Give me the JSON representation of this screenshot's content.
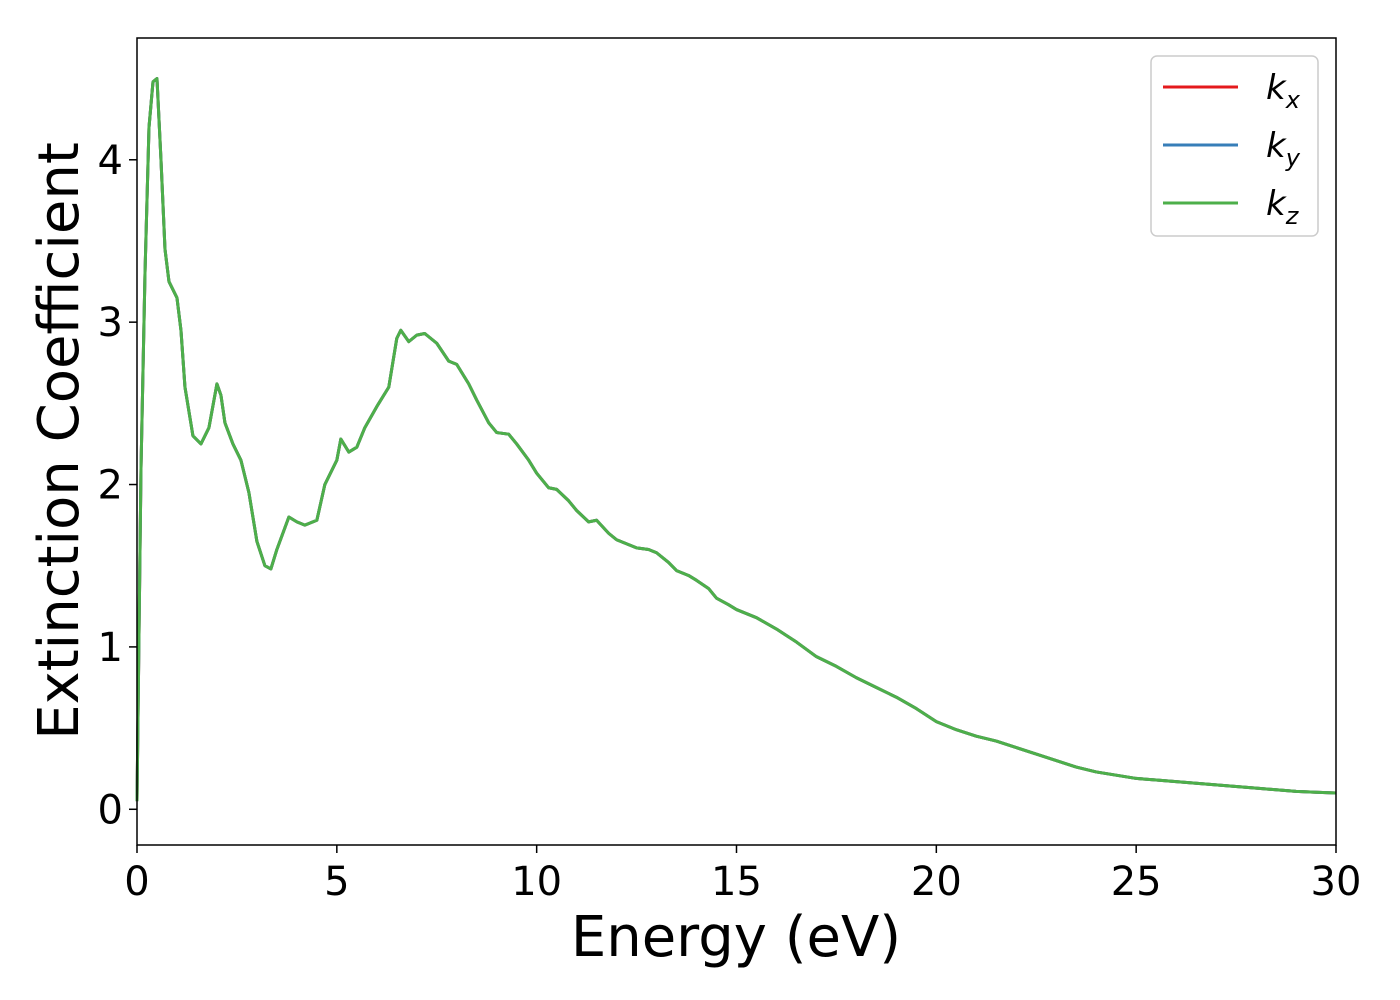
{
  "chart_data": {
    "type": "line",
    "title": "",
    "xlabel": "Energy (eV)",
    "ylabel": "Extinction Coefficient",
    "xlim": [
      0,
      30
    ],
    "ylim": [
      -0.22,
      4.75
    ],
    "xticks": [
      0,
      5,
      10,
      15,
      20,
      25,
      30
    ],
    "yticks": [
      0,
      1,
      2,
      3,
      4
    ],
    "xtick_labels": [
      "0",
      "5",
      "10",
      "15",
      "20",
      "25",
      "30"
    ],
    "ytick_labels": [
      "0",
      "1",
      "2",
      "3",
      "4"
    ],
    "grid": false,
    "legend_position": "top-right",
    "series": [
      {
        "name": "k_x",
        "label_base": "k",
        "label_sub": "x",
        "color": "#e41a1c",
        "x": [
          0,
          0.1,
          0.2,
          0.3,
          0.4,
          0.5,
          0.6,
          0.7,
          0.8,
          1.0,
          1.1,
          1.2,
          1.4,
          1.6,
          1.8,
          2.0,
          2.1,
          2.2,
          2.4,
          2.6,
          2.8,
          3.0,
          3.2,
          3.35,
          3.5,
          3.8,
          4.0,
          4.2,
          4.5,
          4.7,
          5.0,
          5.1,
          5.3,
          5.5,
          5.7,
          6.0,
          6.3,
          6.5,
          6.6,
          6.8,
          7.0,
          7.2,
          7.5,
          7.8,
          8.0,
          8.3,
          8.5,
          8.8,
          9.0,
          9.3,
          9.5,
          9.8,
          10.0,
          10.3,
          10.5,
          10.8,
          11.0,
          11.3,
          11.5,
          11.8,
          12.0,
          12.3,
          12.5,
          12.8,
          13.0,
          13.3,
          13.5,
          13.8,
          14.0,
          14.3,
          14.5,
          14.8,
          15.0,
          15.5,
          16.0,
          16.5,
          17.0,
          17.5,
          18.0,
          18.5,
          19.0,
          19.5,
          20.0,
          20.5,
          21.0,
          21.5,
          22.0,
          22.5,
          23.0,
          23.5,
          24.0,
          24.5,
          25.0,
          25.5,
          26.0,
          26.5,
          27.0,
          27.5,
          28.0,
          28.5,
          29.0,
          29.5,
          30.0
        ],
        "y": [
          0.05,
          2.1,
          3.3,
          4.2,
          4.48,
          4.5,
          4.0,
          3.45,
          3.25,
          3.15,
          2.95,
          2.6,
          2.3,
          2.25,
          2.35,
          2.62,
          2.55,
          2.38,
          2.25,
          2.15,
          1.95,
          1.65,
          1.5,
          1.48,
          1.6,
          1.8,
          1.77,
          1.75,
          1.78,
          2.0,
          2.15,
          2.28,
          2.2,
          2.23,
          2.35,
          2.48,
          2.6,
          2.9,
          2.95,
          2.88,
          2.92,
          2.93,
          2.87,
          2.76,
          2.74,
          2.62,
          2.52,
          2.38,
          2.32,
          2.31,
          2.25,
          2.15,
          2.07,
          1.98,
          1.97,
          1.9,
          1.84,
          1.77,
          1.78,
          1.7,
          1.66,
          1.63,
          1.61,
          1.6,
          1.58,
          1.52,
          1.47,
          1.44,
          1.41,
          1.36,
          1.3,
          1.26,
          1.23,
          1.18,
          1.11,
          1.03,
          0.94,
          0.88,
          0.81,
          0.75,
          0.69,
          0.62,
          0.54,
          0.49,
          0.45,
          0.42,
          0.38,
          0.34,
          0.3,
          0.26,
          0.23,
          0.21,
          0.19,
          0.18,
          0.17,
          0.16,
          0.15,
          0.14,
          0.13,
          0.12,
          0.11,
          0.105,
          0.1
        ]
      },
      {
        "name": "k_y",
        "label_base": "k",
        "label_sub": "y",
        "color": "#377eb8",
        "x": [
          0,
          0.1,
          0.2,
          0.3,
          0.4,
          0.5,
          0.6,
          0.7,
          0.8,
          1.0,
          1.1,
          1.2,
          1.4,
          1.6,
          1.8,
          2.0,
          2.1,
          2.2,
          2.4,
          2.6,
          2.8,
          3.0,
          3.2,
          3.35,
          3.5,
          3.8,
          4.0,
          4.2,
          4.5,
          4.7,
          5.0,
          5.1,
          5.3,
          5.5,
          5.7,
          6.0,
          6.3,
          6.5,
          6.6,
          6.8,
          7.0,
          7.2,
          7.5,
          7.8,
          8.0,
          8.3,
          8.5,
          8.8,
          9.0,
          9.3,
          9.5,
          9.8,
          10.0,
          10.3,
          10.5,
          10.8,
          11.0,
          11.3,
          11.5,
          11.8,
          12.0,
          12.3,
          12.5,
          12.8,
          13.0,
          13.3,
          13.5,
          13.8,
          14.0,
          14.3,
          14.5,
          14.8,
          15.0,
          15.5,
          16.0,
          16.5,
          17.0,
          17.5,
          18.0,
          18.5,
          19.0,
          19.5,
          20.0,
          20.5,
          21.0,
          21.5,
          22.0,
          22.5,
          23.0,
          23.5,
          24.0,
          24.5,
          25.0,
          25.5,
          26.0,
          26.5,
          27.0,
          27.5,
          28.0,
          28.5,
          29.0,
          29.5,
          30.0
        ],
        "y": [
          0.05,
          2.1,
          3.3,
          4.2,
          4.48,
          4.5,
          4.0,
          3.45,
          3.25,
          3.15,
          2.95,
          2.6,
          2.3,
          2.25,
          2.35,
          2.62,
          2.55,
          2.38,
          2.25,
          2.15,
          1.95,
          1.65,
          1.5,
          1.48,
          1.6,
          1.8,
          1.77,
          1.75,
          1.78,
          2.0,
          2.15,
          2.28,
          2.2,
          2.23,
          2.35,
          2.48,
          2.6,
          2.9,
          2.95,
          2.88,
          2.92,
          2.93,
          2.87,
          2.76,
          2.74,
          2.62,
          2.52,
          2.38,
          2.32,
          2.31,
          2.25,
          2.15,
          2.07,
          1.98,
          1.97,
          1.9,
          1.84,
          1.77,
          1.78,
          1.7,
          1.66,
          1.63,
          1.61,
          1.6,
          1.58,
          1.52,
          1.47,
          1.44,
          1.41,
          1.36,
          1.3,
          1.26,
          1.23,
          1.18,
          1.11,
          1.03,
          0.94,
          0.88,
          0.81,
          0.75,
          0.69,
          0.62,
          0.54,
          0.49,
          0.45,
          0.42,
          0.38,
          0.34,
          0.3,
          0.26,
          0.23,
          0.21,
          0.19,
          0.18,
          0.17,
          0.16,
          0.15,
          0.14,
          0.13,
          0.12,
          0.11,
          0.105,
          0.1
        ]
      },
      {
        "name": "k_z",
        "label_base": "k",
        "label_sub": "z",
        "color": "#4daf4a",
        "x": [
          0,
          0.1,
          0.2,
          0.3,
          0.4,
          0.5,
          0.6,
          0.7,
          0.8,
          1.0,
          1.1,
          1.2,
          1.4,
          1.6,
          1.8,
          2.0,
          2.1,
          2.2,
          2.4,
          2.6,
          2.8,
          3.0,
          3.2,
          3.35,
          3.5,
          3.8,
          4.0,
          4.2,
          4.5,
          4.7,
          5.0,
          5.1,
          5.3,
          5.5,
          5.7,
          6.0,
          6.3,
          6.5,
          6.6,
          6.8,
          7.0,
          7.2,
          7.5,
          7.8,
          8.0,
          8.3,
          8.5,
          8.8,
          9.0,
          9.3,
          9.5,
          9.8,
          10.0,
          10.3,
          10.5,
          10.8,
          11.0,
          11.3,
          11.5,
          11.8,
          12.0,
          12.3,
          12.5,
          12.8,
          13.0,
          13.3,
          13.5,
          13.8,
          14.0,
          14.3,
          14.5,
          14.8,
          15.0,
          15.5,
          16.0,
          16.5,
          17.0,
          17.5,
          18.0,
          18.5,
          19.0,
          19.5,
          20.0,
          20.5,
          21.0,
          21.5,
          22.0,
          22.5,
          23.0,
          23.5,
          24.0,
          24.5,
          25.0,
          25.5,
          26.0,
          26.5,
          27.0,
          27.5,
          28.0,
          28.5,
          29.0,
          29.5,
          30.0
        ],
        "y": [
          0.05,
          2.1,
          3.3,
          4.2,
          4.48,
          4.5,
          4.0,
          3.45,
          3.25,
          3.15,
          2.95,
          2.6,
          2.3,
          2.25,
          2.35,
          2.62,
          2.55,
          2.38,
          2.25,
          2.15,
          1.95,
          1.65,
          1.5,
          1.48,
          1.6,
          1.8,
          1.77,
          1.75,
          1.78,
          2.0,
          2.15,
          2.28,
          2.2,
          2.23,
          2.35,
          2.48,
          2.6,
          2.9,
          2.95,
          2.88,
          2.92,
          2.93,
          2.87,
          2.76,
          2.74,
          2.62,
          2.52,
          2.38,
          2.32,
          2.31,
          2.25,
          2.15,
          2.07,
          1.98,
          1.97,
          1.9,
          1.84,
          1.77,
          1.78,
          1.7,
          1.66,
          1.63,
          1.61,
          1.6,
          1.58,
          1.52,
          1.47,
          1.44,
          1.41,
          1.36,
          1.3,
          1.26,
          1.23,
          1.18,
          1.11,
          1.03,
          0.94,
          0.88,
          0.81,
          0.75,
          0.69,
          0.62,
          0.54,
          0.49,
          0.45,
          0.42,
          0.38,
          0.34,
          0.3,
          0.26,
          0.23,
          0.21,
          0.19,
          0.18,
          0.17,
          0.16,
          0.15,
          0.14,
          0.13,
          0.12,
          0.11,
          0.105,
          0.1
        ]
      }
    ]
  }
}
